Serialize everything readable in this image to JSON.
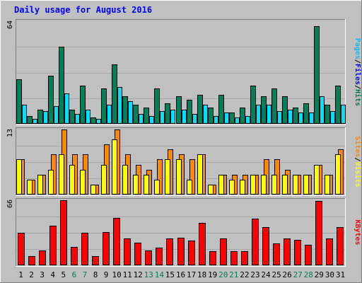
{
  "chart_data": {
    "type": "bar",
    "title": "Daily usage for August 2016",
    "categories": [
      "1",
      "2",
      "3",
      "4",
      "5",
      "6",
      "7",
      "8",
      "9",
      "10",
      "11",
      "12",
      "13",
      "14",
      "15",
      "16",
      "17",
      "18",
      "19",
      "20",
      "21",
      "22",
      "23",
      "24",
      "25",
      "26",
      "27",
      "28",
      "29",
      "30",
      "31"
    ],
    "weekend_days": [
      "6",
      "7",
      "13",
      "14",
      "20",
      "21",
      "27",
      "28"
    ],
    "panels": [
      {
        "id": "hits_files_pages",
        "ymax": 64,
        "ymax_label": "64",
        "series": [
          {
            "name": "Hits",
            "color": "#00805a",
            "values": [
              28,
              5,
              9,
              30,
              48,
              9,
              24,
              4,
              22,
              37,
              17,
              12,
              10,
              22,
              13,
              17,
              15,
              18,
              10,
              18,
              7,
              10,
              24,
              17,
              22,
              17,
              10,
              13,
              61,
              12,
              24
            ]
          },
          {
            "name": "Files",
            "color": "#00c0ff",
            "values": [
              12,
              3,
              8,
              11,
              19,
              6,
              9,
              3,
              12,
              23,
              14,
              6,
              5,
              8,
              9,
              9,
              6,
              12,
              5,
              7,
              4,
              5,
              12,
              12,
              8,
              9,
              7,
              7,
              17,
              8,
              12
            ]
          },
          {
            "name": "Pages",
            "color": "#00e0ff",
            "values": [
              12,
              3,
              8,
              11,
              19,
              6,
              9,
              3,
              12,
              23,
              14,
              6,
              5,
              8,
              9,
              9,
              6,
              12,
              5,
              7,
              4,
              5,
              12,
              12,
              8,
              9,
              7,
              7,
              17,
              8,
              12
            ]
          }
        ],
        "legend_parts": [
          {
            "label": "Pages",
            "color": "#00c0ff"
          },
          {
            "label": "/",
            "color": "#000000"
          },
          {
            "label": "Files",
            "color": "#0000ff"
          },
          {
            "label": "/",
            "color": "#000000"
          },
          {
            "label": "Hits",
            "color": "#00805a"
          }
        ]
      },
      {
        "id": "visits_sites",
        "ymax": 13,
        "ymax_label": "13",
        "series": [
          {
            "name": "Visits",
            "color": "#ff8800",
            "values": [
              7,
              3,
              4,
              8,
              13,
              8,
              8,
              2,
              10,
              13,
              8,
              6,
              5,
              7,
              9,
              8,
              7,
              8,
              2,
              4,
              4,
              4,
              4,
              7,
              7,
              5,
              4,
              4,
              6,
              4,
              9
            ]
          },
          {
            "name": "Sites",
            "color": "#ffff00",
            "values": [
              7,
              3,
              4,
              5,
              8,
              6,
              5,
              2,
              6,
              11,
              6,
              4,
              4,
              3,
              7,
              7,
              3,
              8,
              2,
              4,
              3,
              3,
              4,
              4,
              4,
              4,
              4,
              4,
              6,
              4,
              8
            ]
          }
        ],
        "legend_parts": [
          {
            "label": "Sites",
            "color": "#ff8800"
          },
          {
            "label": "/",
            "color": "#000000"
          },
          {
            "label": "Visits",
            "color": "#ffff00"
          }
        ]
      },
      {
        "id": "kbytes",
        "ymax": 66,
        "ymax_label": "66",
        "series": [
          {
            "name": "KBytes",
            "color": "#ff0000",
            "values": [
              33,
              9,
              15,
              40,
              66,
              19,
              33,
              9,
              34,
              48,
              27,
              23,
              15,
              18,
              27,
              28,
              25,
              43,
              14,
              27,
              14,
              14,
              47,
              39,
              22,
              27,
              26,
              21,
              65,
              27,
              39
            ]
          }
        ],
        "legend_parts": [
          {
            "label": "KBytes",
            "color": "#ff0000"
          }
        ]
      }
    ]
  }
}
